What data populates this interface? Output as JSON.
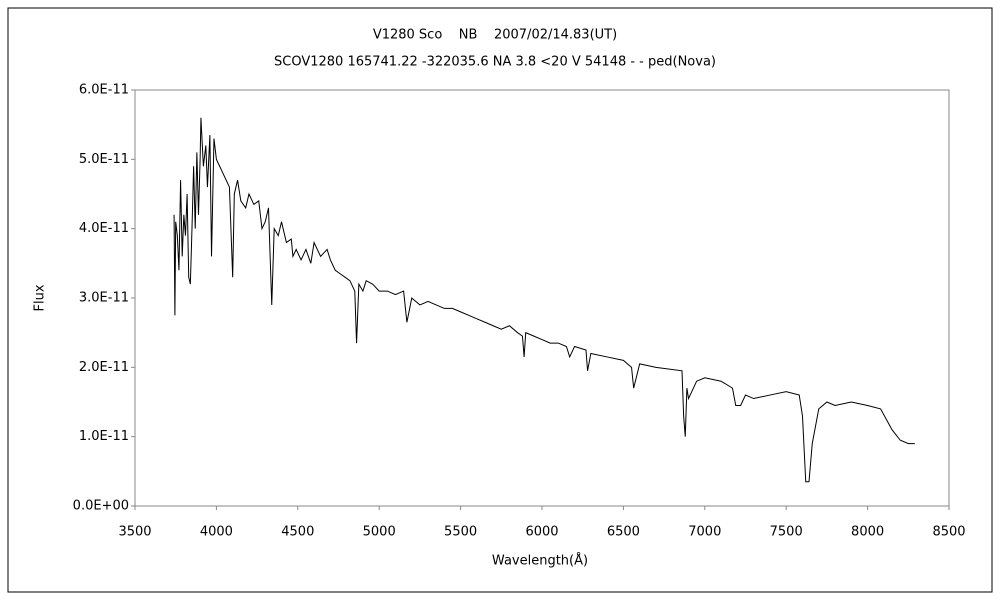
{
  "chart_data": {
    "type": "line",
    "title": "V1280 Sco    NB    2007/02/14.83(UT)",
    "subtitle": "SCOV1280 165741.22 -322035.6 NA 3.8 <20 V 54148 - - ped(Nova)",
    "x_label": "Wavelength(Å)",
    "y_label": "Flux",
    "color": "#000000",
    "xlim": [
      3500,
      8500
    ],
    "xticks": [
      3500,
      4000,
      4500,
      5000,
      5500,
      6000,
      6500,
      7000,
      7500,
      8000,
      8500
    ],
    "ylim": [
      0,
      6e-11
    ],
    "yticks": [
      {
        "value": 0,
        "label": "0.0E+00"
      },
      {
        "value": 1e-11,
        "label": "1.0E-11"
      },
      {
        "value": 2e-11,
        "label": "2.0E-11"
      },
      {
        "value": 3e-11,
        "label": "3.0E-11"
      },
      {
        "value": 4e-11,
        "label": "4.0E-11"
      },
      {
        "value": 5e-11,
        "label": "5.0E-11"
      },
      {
        "value": 6e-11,
        "label": "6.0E-11"
      }
    ],
    "x": [
      3740,
      3745,
      3750,
      3760,
      3770,
      3780,
      3790,
      3800,
      3810,
      3820,
      3830,
      3840,
      3850,
      3860,
      3870,
      3880,
      3890,
      3900,
      3905,
      3920,
      3935,
      3945,
      3960,
      3970,
      3985,
      4000,
      4020,
      4040,
      4060,
      4080,
      4100,
      4110,
      4130,
      4150,
      4180,
      4200,
      4230,
      4260,
      4280,
      4300,
      4320,
      4340,
      4355,
      4380,
      4400,
      4430,
      4460,
      4470,
      4490,
      4520,
      4550,
      4580,
      4600,
      4640,
      4680,
      4700,
      4730,
      4760,
      4790,
      4820,
      4850,
      4861,
      4875,
      4900,
      4920,
      4960,
      5000,
      5050,
      5100,
      5150,
      5170,
      5200,
      5250,
      5300,
      5350,
      5400,
      5450,
      5500,
      5550,
      5600,
      5650,
      5700,
      5750,
      5800,
      5850,
      5880,
      5890,
      5900,
      5950,
      6000,
      6050,
      6100,
      6150,
      6170,
      6200,
      6270,
      6280,
      6300,
      6400,
      6500,
      6550,
      6563,
      6600,
      6700,
      6860,
      6870,
      6880,
      6890,
      6900,
      6950,
      7000,
      7100,
      7170,
      7190,
      7220,
      7250,
      7300,
      7400,
      7500,
      7580,
      7600,
      7620,
      7640,
      7660,
      7700,
      7750,
      7800,
      7900,
      8000,
      8080,
      8150,
      8200,
      8250,
      8290
    ],
    "values": [
      4.2e-11,
      2.75e-11,
      4.1e-11,
      3.9e-11,
      3.4e-11,
      4.7e-11,
      3.6e-11,
      4.2e-11,
      3.9e-11,
      4.5e-11,
      3.3e-11,
      3.2e-11,
      4e-11,
      4.9e-11,
      4e-11,
      5.1e-11,
      4.2e-11,
      5e-11,
      5.6e-11,
      4.9e-11,
      5.2e-11,
      4.6e-11,
      5.35e-11,
      3.6e-11,
      5.3e-11,
      5e-11,
      4.9e-11,
      4.8e-11,
      4.7e-11,
      4.6e-11,
      3.3e-11,
      4.5e-11,
      4.7e-11,
      4.4e-11,
      4.3e-11,
      4.5e-11,
      4.35e-11,
      4.4e-11,
      4e-11,
      4.1e-11,
      4.3e-11,
      2.9e-11,
      4e-11,
      3.9e-11,
      4.1e-11,
      3.8e-11,
      3.85e-11,
      3.6e-11,
      3.7e-11,
      3.55e-11,
      3.7e-11,
      3.5e-11,
      3.8e-11,
      3.6e-11,
      3.7e-11,
      3.55e-11,
      3.4e-11,
      3.35e-11,
      3.3e-11,
      3.25e-11,
      3.1e-11,
      2.35e-11,
      3.2e-11,
      3.1e-11,
      3.25e-11,
      3.2e-11,
      3.1e-11,
      3.1e-11,
      3.05e-11,
      3.1e-11,
      2.65e-11,
      3e-11,
      2.9e-11,
      2.95e-11,
      2.9e-11,
      2.85e-11,
      2.85e-11,
      2.8e-11,
      2.75e-11,
      2.7e-11,
      2.65e-11,
      2.6e-11,
      2.55e-11,
      2.6e-11,
      2.5e-11,
      2.45e-11,
      2.15e-11,
      2.5e-11,
      2.45e-11,
      2.4e-11,
      2.35e-11,
      2.35e-11,
      2.3e-11,
      2.15e-11,
      2.3e-11,
      2.25e-11,
      1.95e-11,
      2.2e-11,
      2.15e-11,
      2.1e-11,
      2e-11,
      1.7e-11,
      2.05e-11,
      2e-11,
      1.95e-11,
      1.3e-11,
      1e-11,
      1.7e-11,
      1.55e-11,
      1.8e-11,
      1.85e-11,
      1.8e-11,
      1.7e-11,
      1.45e-11,
      1.45e-11,
      1.6e-11,
      1.55e-11,
      1.6e-11,
      1.65e-11,
      1.6e-11,
      1.3e-11,
      3.5e-12,
      3.5e-12,
      9e-12,
      1.4e-11,
      1.5e-11,
      1.45e-11,
      1.5e-11,
      1.45e-11,
      1.4e-11,
      1.1e-11,
      9.5e-12,
      9e-12,
      9e-12
    ]
  }
}
